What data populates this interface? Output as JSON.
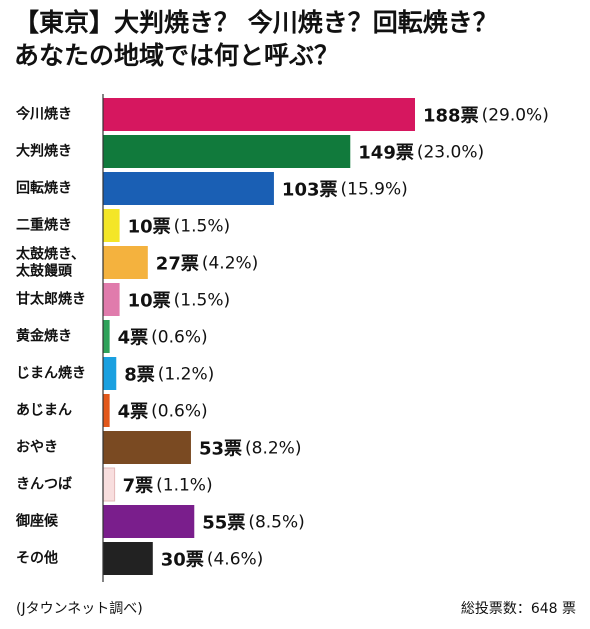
{
  "chart_data": {
    "type": "bar",
    "orientation": "horizontal",
    "title_lines": [
      "【東京】大判焼き？ 今川焼き？回転焼き？",
      "あなたの地域では何と呼ぶ？"
    ],
    "vote_suffix": "票",
    "categories": [
      [
        "今川焼き"
      ],
      [
        "大判焼き"
      ],
      [
        "回転焼き"
      ],
      [
        "二重焼き"
      ],
      [
        "太鼓焼き、",
        "太鼓饅頭"
      ],
      [
        "甘太郎焼き"
      ],
      [
        "黄金焼き"
      ],
      [
        "じまん焼き"
      ],
      [
        "あじまん"
      ],
      [
        "おやき"
      ],
      [
        "きんつば"
      ],
      [
        "御座候"
      ],
      [
        "その他"
      ]
    ],
    "values": [
      188,
      149,
      103,
      10,
      27,
      10,
      4,
      8,
      4,
      53,
      7,
      55,
      30
    ],
    "percent_labels": [
      "(29.0%)",
      "(23.0%)",
      "(15.9%)",
      "(1.5%)",
      "(4.2%)",
      "(1.5%)",
      "(0.6%)",
      "(1.2%)",
      "(0.6%)",
      "(8.2%)",
      "(1.1%)",
      "(8.5%)",
      "(4.6%)"
    ],
    "colors": [
      "#d6175f",
      "#117a3c",
      "#1a5fb4",
      "#f4e627",
      "#f4b23e",
      "#e07bac",
      "#2fa25a",
      "#1aa0e0",
      "#e2581b",
      "#7a4a22",
      "#f8dede",
      "#7a1e8c",
      "#222222"
    ],
    "xlim": [
      0,
      188
    ],
    "grid": false,
    "legend": "none"
  },
  "footer": {
    "source": "(Jタウンネット調べ)",
    "total": "総投票数：648 票"
  }
}
